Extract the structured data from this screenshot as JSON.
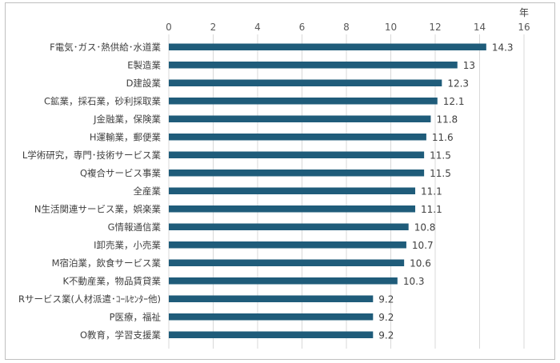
{
  "chart_data": {
    "type": "bar",
    "orientation": "horizontal",
    "axis_unit": "年",
    "xlim": [
      0,
      16
    ],
    "x_ticks": [
      0,
      2,
      4,
      6,
      8,
      10,
      12,
      14,
      16
    ],
    "grid": true,
    "bar_color": "#1f5c7a",
    "categories": [
      "F電気･ガス･熱供給･水道業",
      "E製造業",
      "D建設業",
      "C鉱業，採石業，砂利採取業",
      "J金融業，保険業",
      "H運輸業，郵便業",
      "L学術研究，専門･技術サービス業",
      "Q複合サービス事業",
      "全産業",
      "N生活関連サービス業，娯楽業",
      "G情報通信業",
      "I卸売業，小売業",
      "M宿泊業，飲食サービス業",
      "K不動産業，物品賃貸業",
      "Rサービス業(人材派遣･ｺｰﾙｾﾝﾀｰ他)",
      "P医療，福祉",
      "O教育，学習支援業"
    ],
    "values": [
      14.3,
      13,
      12.3,
      12.1,
      11.8,
      11.6,
      11.5,
      11.5,
      11.1,
      11.1,
      10.8,
      10.7,
      10.6,
      10.3,
      9.2,
      9.2,
      9.2
    ],
    "value_labels": [
      "14.3",
      "13",
      "12.3",
      "12.1",
      "11.8",
      "11.6",
      "11.5",
      "11.5",
      "11.1",
      "11.1",
      "10.8",
      "10.7",
      "10.6",
      "10.3",
      "9.2",
      "9.2",
      "9.2"
    ]
  }
}
